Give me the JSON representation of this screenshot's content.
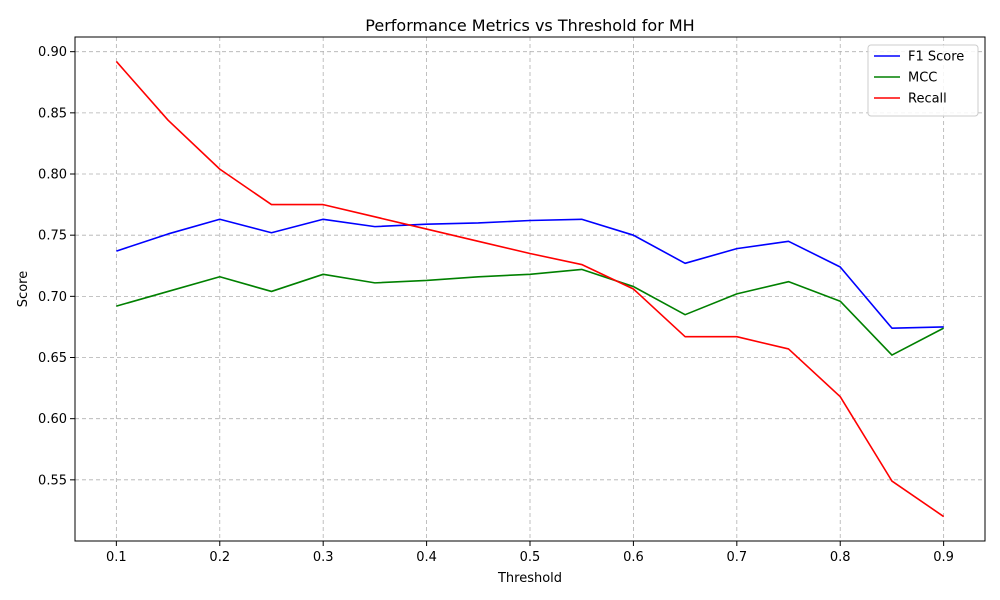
{
  "chart_data": {
    "type": "line",
    "title": "Performance Metrics vs Threshold for MH",
    "xlabel": "Threshold",
    "ylabel": "Score",
    "x": [
      0.1,
      0.15,
      0.2,
      0.25,
      0.3,
      0.35,
      0.4,
      0.45,
      0.5,
      0.55,
      0.6,
      0.65,
      0.7,
      0.75,
      0.8,
      0.85,
      0.9
    ],
    "xlim": [
      0.06,
      0.94
    ],
    "ylim": [
      0.5,
      0.912
    ],
    "xticks": [
      "0.1",
      "0.2",
      "0.3",
      "0.4",
      "0.5",
      "0.6",
      "0.7",
      "0.8",
      "0.9"
    ],
    "yticks": [
      "0.55",
      "0.60",
      "0.65",
      "0.70",
      "0.75",
      "0.80",
      "0.85",
      "0.90"
    ],
    "grid": true,
    "legend_position": "top-right",
    "series": [
      {
        "name": "F1 Score",
        "color": "#0000ff",
        "values": [
          0.737,
          0.751,
          0.763,
          0.752,
          0.763,
          0.757,
          0.759,
          0.76,
          0.762,
          0.763,
          0.75,
          0.727,
          0.739,
          0.745,
          0.724,
          0.674,
          0.675
        ]
      },
      {
        "name": "MCC",
        "color": "#008000",
        "values": [
          0.692,
          0.704,
          0.716,
          0.704,
          0.718,
          0.711,
          0.713,
          0.716,
          0.718,
          0.722,
          0.708,
          0.685,
          0.702,
          0.712,
          0.696,
          0.652,
          0.674
        ]
      },
      {
        "name": "Recall",
        "color": "#ff0000",
        "values": [
          0.892,
          0.844,
          0.804,
          0.775,
          0.775,
          0.765,
          0.755,
          0.745,
          0.735,
          0.726,
          0.706,
          0.667,
          0.667,
          0.657,
          0.618,
          0.549,
          0.52
        ]
      }
    ]
  }
}
